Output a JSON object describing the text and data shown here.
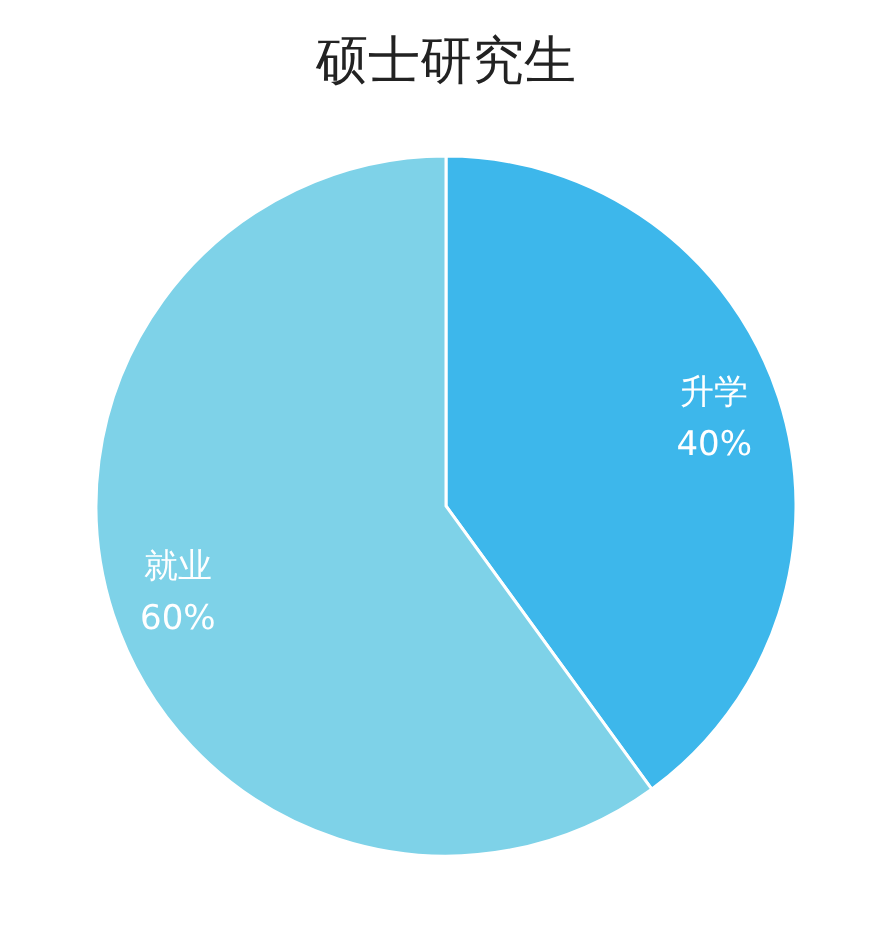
{
  "chart_data": {
    "type": "pie",
    "title": "硕士研究生",
    "categories": [
      "升学",
      "就业"
    ],
    "values": [
      40,
      60
    ],
    "colors": [
      "#3db7eb",
      "#7ed2e8"
    ],
    "value_labels": [
      "40%",
      "60%"
    ]
  }
}
